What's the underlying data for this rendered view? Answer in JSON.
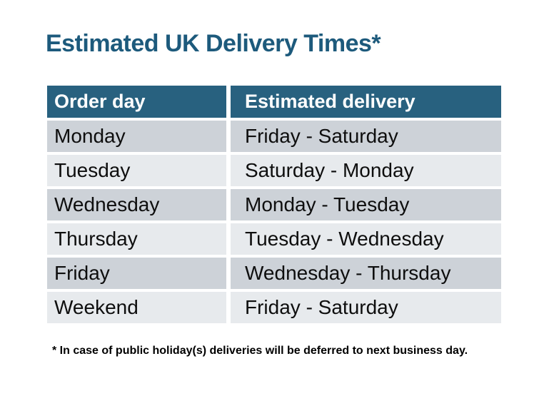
{
  "title": "Estimated UK Delivery Times*",
  "table": {
    "columns": [
      "Order day",
      "Estimated delivery"
    ],
    "rows": [
      [
        "Monday",
        "Friday - Saturday"
      ],
      [
        "Tuesday",
        "Saturday - Monday"
      ],
      [
        "Wednesday",
        "Monday - Tuesday"
      ],
      [
        "Thursday",
        "Tuesday - Wednesday"
      ],
      [
        "Friday",
        "Wednesday - Thursday"
      ],
      [
        "Weekend",
        "Friday - Saturday"
      ]
    ]
  },
  "footnote": "* In case of public holiday(s) deliveries will be deferred to next business day.",
  "colors": {
    "background": "#ffffff",
    "title": "#1d5a7c",
    "header_bg": "#28617f",
    "header_text": "#ffffff",
    "row_dark": "#cdd2d8",
    "row_light": "#e7eaed",
    "body_text": "#0e0e0e"
  }
}
